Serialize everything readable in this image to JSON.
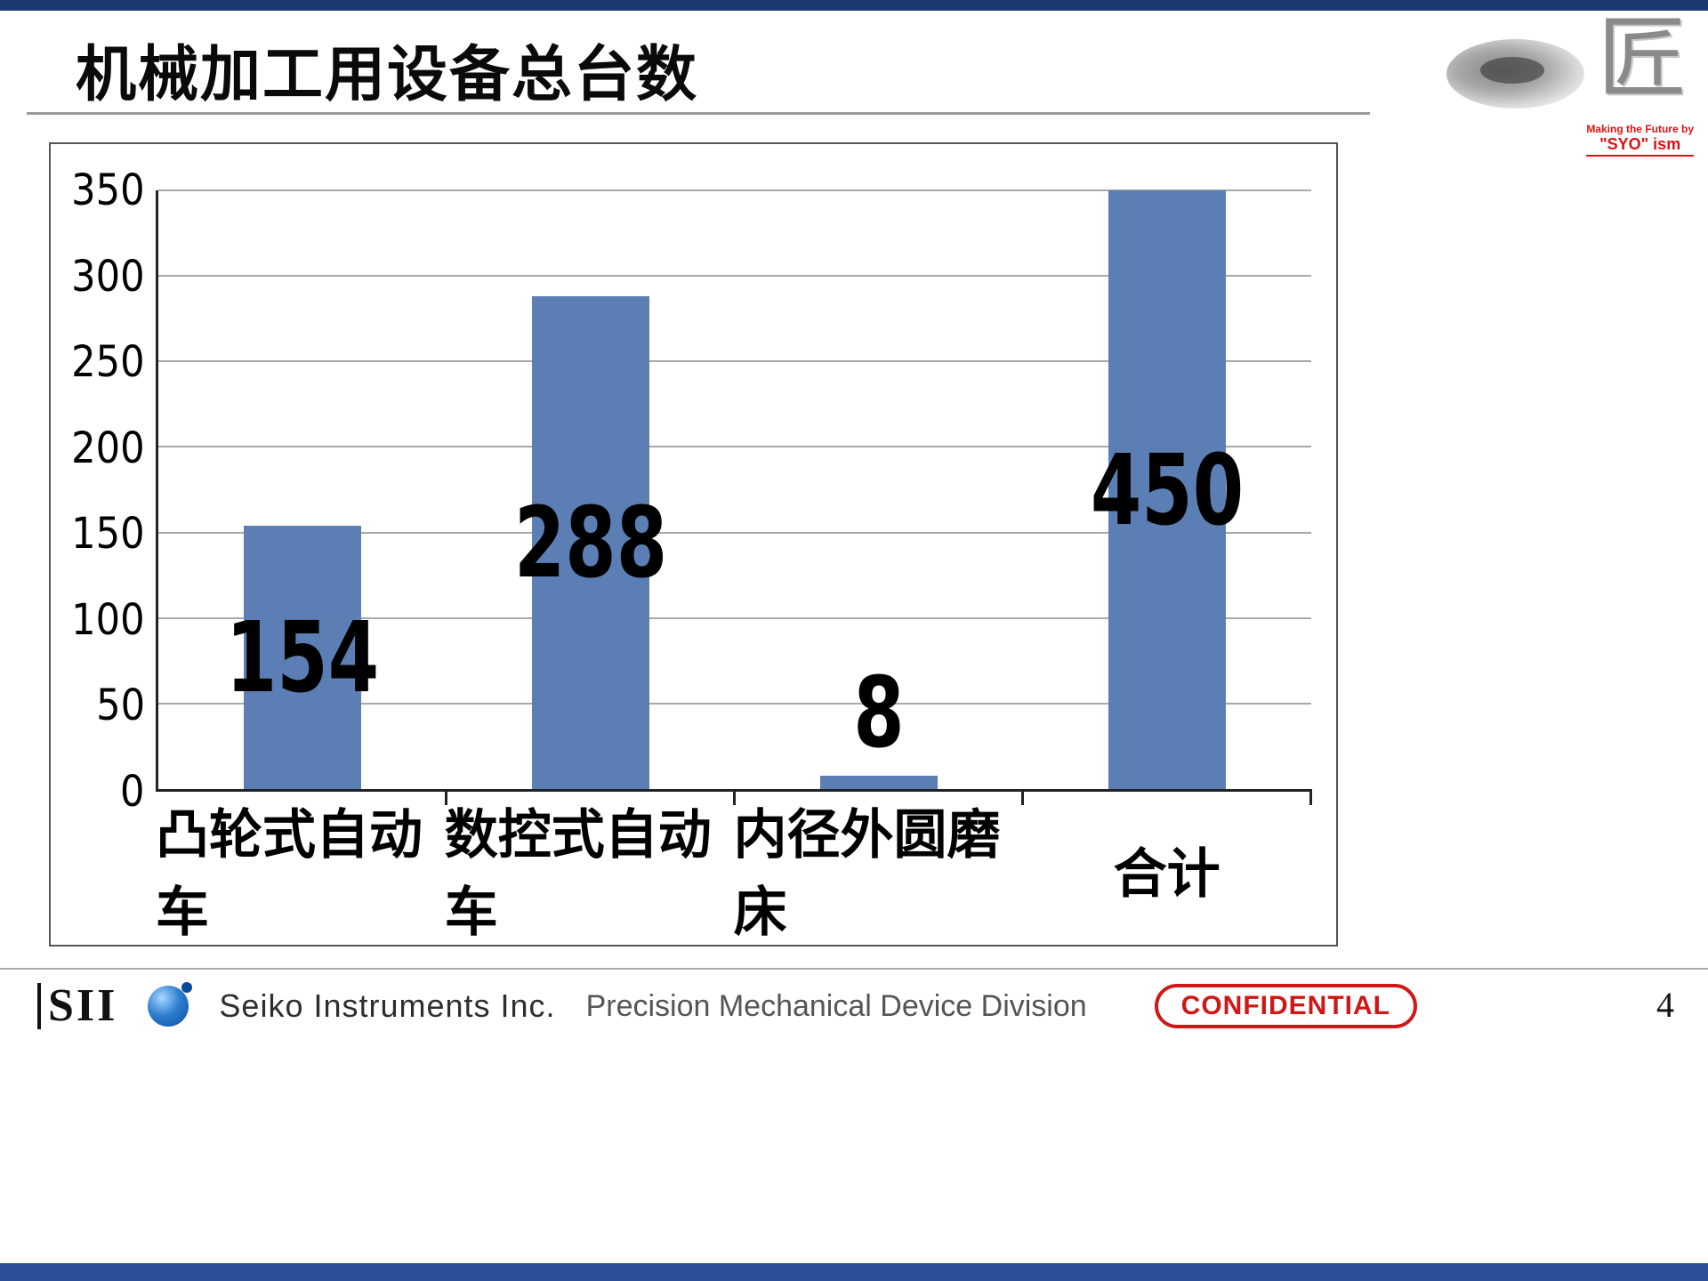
{
  "slide": {
    "title": "机械加工用设备总台数",
    "page_number": "4"
  },
  "logo_badge": {
    "glyph": "匠",
    "tagline_line1": "Making the Future by",
    "tagline_line2": "\"SYO\" ism"
  },
  "footer": {
    "company_abbr": "SII",
    "company_name": "Seiko Instruments Inc.",
    "division": "Precision Mechanical Device Division",
    "confidential_label": "CONFIDENTIAL"
  },
  "colors": {
    "top_band": "#1d3a6e",
    "bottom_band": "#2a4f96",
    "bar": "#5b7fb4",
    "gridline": "#a8a8a8",
    "confidential": "#cf1717"
  },
  "chart_data": {
    "type": "bar",
    "title": "",
    "xlabel": "",
    "ylabel": "",
    "categories": [
      "凸轮式自动车",
      "数控式自动车",
      "内径外圆磨床",
      "合计"
    ],
    "values": [
      154,
      288,
      8,
      450
    ],
    "ylim": [
      0,
      350
    ],
    "ytick_step": 50,
    "grid": true,
    "bar_color": "#5b7fb4",
    "clip_values_at_ymax": true,
    "legend": "none"
  }
}
